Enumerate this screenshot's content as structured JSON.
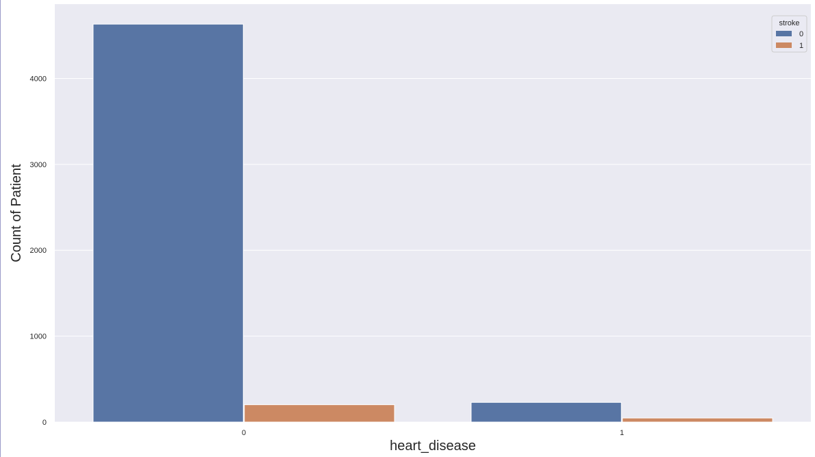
{
  "chart_data": {
    "type": "bar",
    "categories": [
      "0",
      "1"
    ],
    "series": [
      {
        "name": "0",
        "values": [
          4632,
          229
        ],
        "color": "#5875a4"
      },
      {
        "name": "1",
        "values": [
          202,
          47
        ],
        "color": "#cc8963"
      }
    ],
    "xlabel": "heart_disease",
    "ylabel": "Count of Patient",
    "ylim": [
      0,
      4865
    ],
    "yticks": [
      0,
      1000,
      2000,
      3000,
      4000
    ],
    "grid": true,
    "legend": {
      "title": "stroke",
      "placement": "top-right"
    },
    "background_color": "#eaeaf2"
  }
}
